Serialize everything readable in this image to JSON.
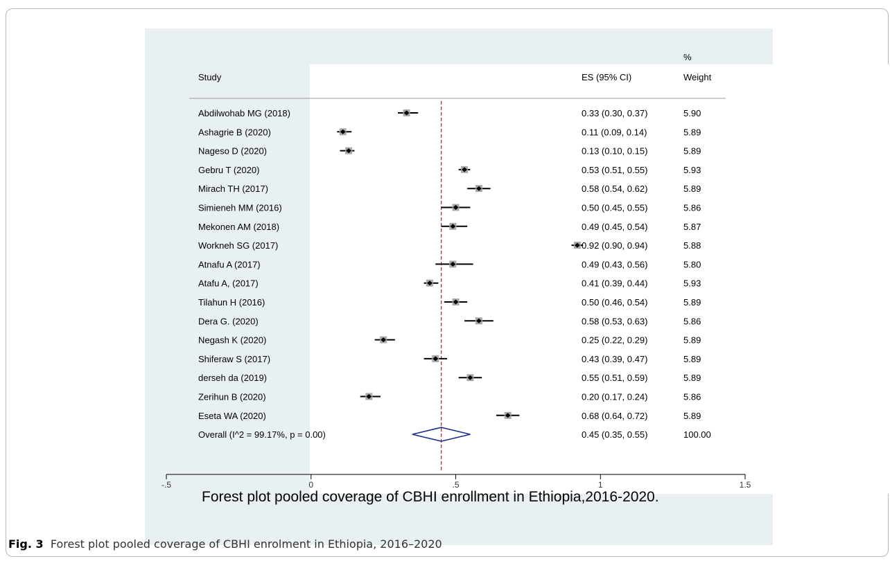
{
  "figure": {
    "caption_label": "Fig. 3",
    "caption_text": "Forest plot pooled coverage of CBHI enrolment in Ethiopia, 2016–2020"
  },
  "chart_data": {
    "type": "forest",
    "xlabel": "Forest plot pooled coverage of CBHI enrollment in Ethiopia,2016-2020.",
    "xlim": [
      -0.5,
      1.5
    ],
    "xticks": [
      -0.5,
      0,
      0.5,
      1,
      1.5
    ],
    "xtick_labels": [
      "-.5",
      "0",
      ".5",
      "1",
      "1.5"
    ],
    "reference_line": 0.45,
    "headers": {
      "study": "Study",
      "es": "ES (95% CI)",
      "weight_line1": "%",
      "weight_line2": "Weight"
    },
    "studies": [
      {
        "name": "Abdilwohab MG (2018)",
        "es": 0.33,
        "lo": 0.3,
        "hi": 0.37,
        "ci_text": "0.33 (0.30, 0.37)",
        "weight": "5.90"
      },
      {
        "name": "Ashagrie B (2020)",
        "es": 0.11,
        "lo": 0.09,
        "hi": 0.14,
        "ci_text": "0.11 (0.09, 0.14)",
        "weight": "5.89"
      },
      {
        "name": "Nageso D (2020)",
        "es": 0.13,
        "lo": 0.1,
        "hi": 0.15,
        "ci_text": "0.13 (0.10, 0.15)",
        "weight": "5.89"
      },
      {
        "name": "Gebru T (2020)",
        "es": 0.53,
        "lo": 0.51,
        "hi": 0.55,
        "ci_text": "0.53 (0.51, 0.55)",
        "weight": "5.93"
      },
      {
        "name": "Mirach TH (2017)",
        "es": 0.58,
        "lo": 0.54,
        "hi": 0.62,
        "ci_text": "0.58 (0.54, 0.62)",
        "weight": "5.89"
      },
      {
        "name": "Simieneh MM (2016)",
        "es": 0.5,
        "lo": 0.45,
        "hi": 0.55,
        "ci_text": "0.50 (0.45, 0.55)",
        "weight": "5.86"
      },
      {
        "name": "Mekonen AM (2018)",
        "es": 0.49,
        "lo": 0.45,
        "hi": 0.54,
        "ci_text": "0.49 (0.45, 0.54)",
        "weight": "5.87"
      },
      {
        "name": "Workneh SG (2017)",
        "es": 0.92,
        "lo": 0.9,
        "hi": 0.94,
        "ci_text": "0.92 (0.90, 0.94)",
        "weight": "5.88"
      },
      {
        "name": "Atnafu A (2017)",
        "es": 0.49,
        "lo": 0.43,
        "hi": 0.56,
        "ci_text": "0.49 (0.43, 0.56)",
        "weight": "5.80"
      },
      {
        "name": "Atafu A,  (2017)",
        "es": 0.41,
        "lo": 0.39,
        "hi": 0.44,
        "ci_text": "0.41 (0.39, 0.44)",
        "weight": "5.93"
      },
      {
        "name": "Tilahun H (2016)",
        "es": 0.5,
        "lo": 0.46,
        "hi": 0.54,
        "ci_text": "0.50 (0.46, 0.54)",
        "weight": "5.89"
      },
      {
        "name": "Dera G. (2020)",
        "es": 0.58,
        "lo": 0.53,
        "hi": 0.63,
        "ci_text": "0.58 (0.53, 0.63)",
        "weight": "5.86"
      },
      {
        "name": "Negash K (2020)",
        "es": 0.25,
        "lo": 0.22,
        "hi": 0.29,
        "ci_text": "0.25 (0.22, 0.29)",
        "weight": "5.89"
      },
      {
        "name": "Shiferaw S (2017)",
        "es": 0.43,
        "lo": 0.39,
        "hi": 0.47,
        "ci_text": "0.43 (0.39, 0.47)",
        "weight": "5.89"
      },
      {
        "name": "derseh da (2019)",
        "es": 0.55,
        "lo": 0.51,
        "hi": 0.59,
        "ci_text": "0.55 (0.51, 0.59)",
        "weight": "5.89"
      },
      {
        "name": "Zerihun B (2020)",
        "es": 0.2,
        "lo": 0.17,
        "hi": 0.24,
        "ci_text": "0.20 (0.17, 0.24)",
        "weight": "5.86"
      },
      {
        "name": "Eseta WA (2020)",
        "es": 0.68,
        "lo": 0.64,
        "hi": 0.72,
        "ci_text": "0.68 (0.64, 0.72)",
        "weight": "5.89"
      }
    ],
    "overall": {
      "name": "Overall  (I^2 = 99.17%, p = 0.00)",
      "es": 0.45,
      "lo": 0.35,
      "hi": 0.55,
      "ci_text": "0.45 (0.35, 0.55)",
      "weight": "100.00"
    },
    "colors": {
      "ci_line": "#000000",
      "point": "#000000",
      "weight_box": "#a9a9a9",
      "reference_line": "#b22222",
      "overall_diamond": "#1c2f8c"
    }
  }
}
